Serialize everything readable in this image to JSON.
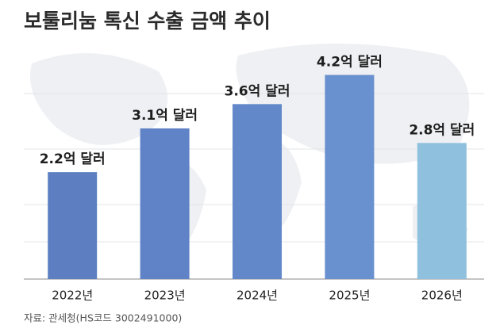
{
  "chart_data": {
    "type": "bar",
    "title": "보툴리눔 톡신 수출 금액 추이",
    "source": "자료: 관세청(HS코드 3002491000)",
    "categories": [
      "2022년",
      "2023년",
      "2024년",
      "2025년",
      "2026년"
    ],
    "values": [
      2.2,
      3.1,
      3.6,
      4.2,
      2.8
    ],
    "value_labels": [
      "2.2억 달러",
      "3.1억 달러",
      "3.6억 달러",
      "4.2억 달러",
      "2.8억 달러"
    ],
    "colors": [
      "#5d7fc2",
      "#5f83c6",
      "#6288c9",
      "#6990cf",
      "#8fc0de"
    ],
    "ylim": [
      0,
      4.6
    ]
  }
}
